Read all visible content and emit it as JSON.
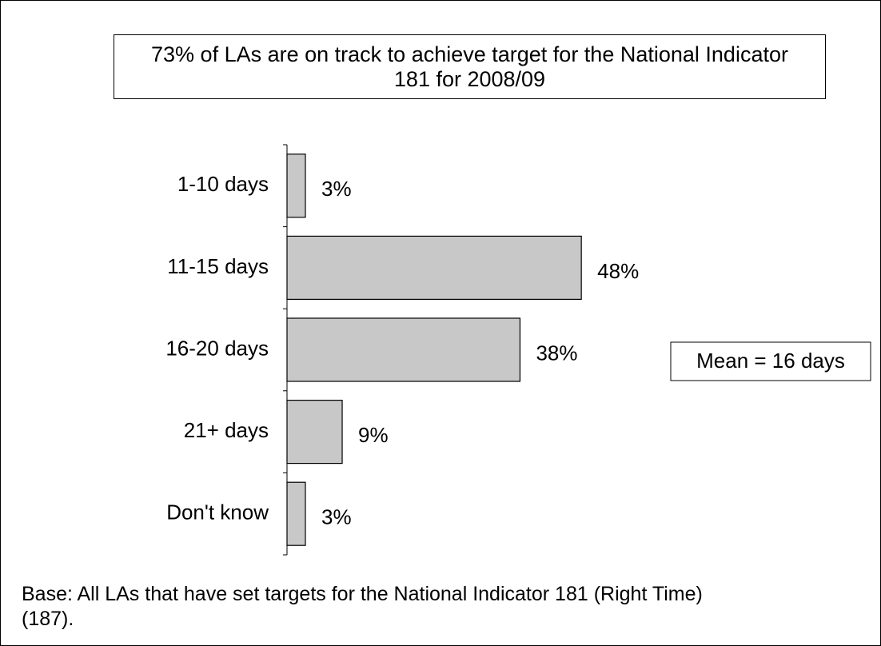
{
  "chart_data": {
    "type": "bar",
    "orientation": "horizontal",
    "title": "73% of LAs are on track to achieve target for the National Indicator 181 for 2008/09",
    "categories": [
      "1-10 days",
      "11-15 days",
      "16-20 days",
      "21+ days",
      "Don't know"
    ],
    "values": [
      3,
      48,
      38,
      9,
      3
    ],
    "value_labels": [
      "3%",
      "48%",
      "38%",
      "9%",
      "3%"
    ],
    "color": "#c8c8c8",
    "annotation": "Mean = 16 days",
    "footnote": "Base: All LAs that have set targets for the National Indicator 181 (Right Time) (187)."
  }
}
